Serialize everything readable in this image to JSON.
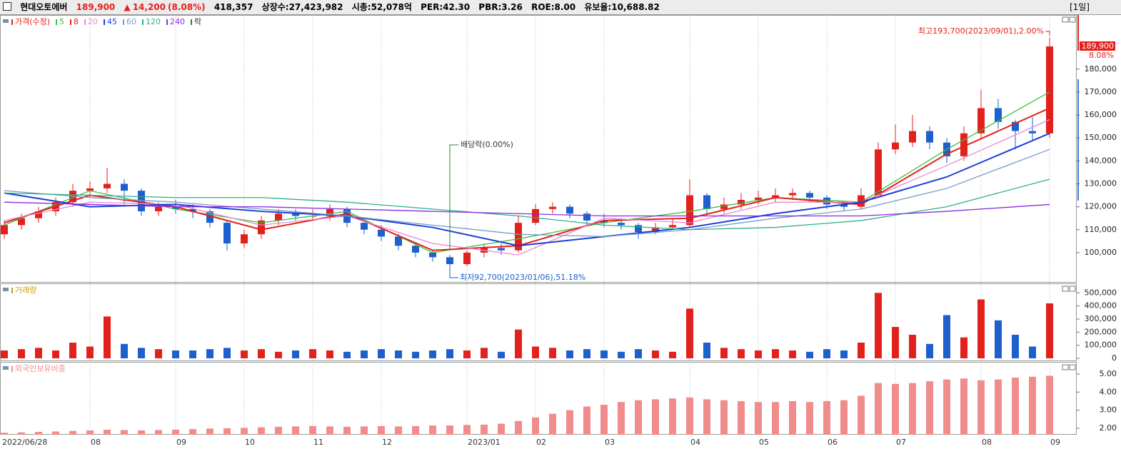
{
  "header": {
    "name": "현대오토에버",
    "price": "189,900",
    "arrow": "▲",
    "change": "14,200",
    "rate": "(8.08%)",
    "volume": "418,357",
    "shares": "상장수:27,423,982",
    "cap": "시총:52,078억",
    "per": "PER:42.30",
    "pbr": "PBR:3.26",
    "roe": "ROE:8.00",
    "reserve": "유보율:10,688.82",
    "period": "[1일]"
  },
  "chart_data": [
    {
      "type": "candlestick",
      "price_label": "가격(수정)",
      "ex_div_legend": "락",
      "up_color": "#e3211c",
      "down_color": "#1d5fcc",
      "open": [
        108000,
        112000,
        115000,
        118000,
        122000,
        127000,
        128000,
        130000,
        127000,
        118000,
        120000,
        119000,
        118000,
        113000,
        104000,
        108000,
        114000,
        117000,
        116000,
        116000,
        119000,
        113000,
        110000,
        107000,
        103000,
        100000,
        98000,
        95000,
        100000,
        102000,
        101000,
        113000,
        119000,
        120000,
        117000,
        114000,
        113000,
        112000,
        109000,
        111000,
        112000,
        125000,
        119000,
        121000,
        123000,
        124000,
        125000,
        126000,
        124000,
        121000,
        120000,
        125000,
        145000,
        148000,
        153000,
        148000,
        142000,
        152000,
        163000,
        157000,
        153000,
        152000
      ],
      "high": [
        114000,
        117000,
        120000,
        124000,
        130000,
        131000,
        137000,
        132000,
        128000,
        122000,
        123000,
        121000,
        119000,
        114000,
        110000,
        116000,
        119000,
        119000,
        119000,
        121000,
        120000,
        114000,
        112000,
        108000,
        104000,
        101000,
        99000,
        101000,
        104000,
        104000,
        116000,
        121000,
        122000,
        121000,
        118000,
        117000,
        115000,
        113000,
        113000,
        115000,
        132000,
        126000,
        124000,
        126000,
        127000,
        128000,
        128000,
        127000,
        125000,
        122000,
        128000,
        148000,
        156000,
        160000,
        155000,
        150000,
        155000,
        171000,
        167000,
        158000,
        159000,
        193700
      ],
      "low": [
        106000,
        110000,
        113000,
        116000,
        120000,
        124000,
        126000,
        121000,
        116000,
        116000,
        117000,
        115000,
        111000,
        101000,
        102000,
        106000,
        112000,
        114000,
        114000,
        114000,
        111000,
        108000,
        105000,
        101000,
        98000,
        96000,
        92700,
        94000,
        98000,
        99000,
        100000,
        112000,
        117000,
        115000,
        112000,
        111000,
        110000,
        106000,
        108000,
        110000,
        111000,
        116000,
        117000,
        119000,
        121000,
        122000,
        123000,
        122000,
        119000,
        118000,
        119000,
        124000,
        143000,
        146000,
        145000,
        139000,
        140000,
        150000,
        154000,
        145000,
        149000,
        150000
      ],
      "close": [
        112000,
        115000,
        118000,
        122000,
        127000,
        128000,
        130000,
        127000,
        118000,
        120000,
        119000,
        118000,
        113000,
        104000,
        108000,
        114000,
        117000,
        116000,
        116000,
        119000,
        113000,
        110000,
        107000,
        103000,
        100000,
        98000,
        95000,
        100000,
        102000,
        101000,
        113000,
        119000,
        120000,
        117000,
        114000,
        113000,
        112000,
        109000,
        111000,
        112000,
        125000,
        119000,
        121000,
        123000,
        124000,
        125000,
        126000,
        124000,
        121000,
        120000,
        125000,
        145000,
        148000,
        153000,
        148000,
        142000,
        152000,
        163000,
        157000,
        153000,
        152000,
        189900
      ],
      "ma_x": [
        0,
        5,
        10,
        15,
        20,
        25,
        30,
        35,
        40,
        45,
        50,
        55,
        61
      ],
      "series": [
        {
          "name": "5",
          "color": "#3cbf3c",
          "values": [
            112000,
            127000,
            119000,
            113000,
            118000,
            100000,
            106000,
            113000,
            118000,
            124000,
            122000,
            145000,
            170000
          ]
        },
        {
          "name": "8",
          "color": "#e3211c",
          "values": [
            113000,
            125000,
            120000,
            110000,
            117000,
            101000,
            103000,
            114000,
            115000,
            124000,
            121000,
            143000,
            163000
          ]
        },
        {
          "name": "20",
          "color": "#e58ad8",
          "values": [
            114000,
            122000,
            121000,
            112000,
            116000,
            104000,
            99000,
            115000,
            113000,
            122000,
            122000,
            138000,
            158000
          ]
        },
        {
          "name": "45",
          "color": "#1a3fd6",
          "values": [
            126000,
            120000,
            121000,
            118000,
            116000,
            111000,
            103000,
            107000,
            111000,
            117000,
            122000,
            133000,
            152000
          ]
        },
        {
          "name": "60",
          "color": "#7a9cc8",
          "values": [
            127000,
            124000,
            122000,
            119000,
            116000,
            112000,
            108000,
            107000,
            110000,
            115000,
            119000,
            128000,
            145000
          ]
        },
        {
          "name": "120",
          "color": "#2fb08a",
          "values": [
            126000,
            125000,
            124000,
            124000,
            122000,
            119000,
            116000,
            112000,
            110000,
            111000,
            114000,
            120000,
            132000
          ]
        },
        {
          "name": "240",
          "color": "#8a2be2",
          "values": [
            122000,
            121000,
            120000,
            120000,
            119000,
            118000,
            117000,
            116000,
            116000,
            116000,
            116000,
            118000,
            121000
          ]
        }
      ],
      "annotations": {
        "high": "최고193,700(2023/09/01),2.00%",
        "low": "최저92,700(2023/01/06),51.18%",
        "dividend": "배당락(0.00%)"
      },
      "last_label": "189,900",
      "last_change": "8.08%",
      "ylim": [
        86900,
        203600
      ],
      "yticks": [
        {
          "value": 100000,
          "label": "100,000"
        },
        {
          "value": 110000,
          "label": "110,000"
        },
        {
          "value": 120000,
          "label": "120,000"
        },
        {
          "value": 130000,
          "label": "130,000"
        },
        {
          "value": 140000,
          "label": "140,000"
        },
        {
          "value": 150000,
          "label": "150,000"
        },
        {
          "value": 160000,
          "label": "160,000"
        },
        {
          "value": 170000,
          "label": "170,000"
        },
        {
          "value": 180000,
          "label": "180,000"
        }
      ]
    },
    {
      "type": "bar",
      "title": "거래량",
      "values": [
        60000,
        70000,
        80000,
        60000,
        120000,
        90000,
        320000,
        110000,
        80000,
        70000,
        60000,
        60000,
        70000,
        80000,
        60000,
        70000,
        50000,
        60000,
        70000,
        60000,
        50000,
        60000,
        70000,
        60000,
        50000,
        60000,
        70000,
        60000,
        80000,
        50000,
        220000,
        90000,
        80000,
        60000,
        70000,
        60000,
        50000,
        70000,
        60000,
        50000,
        380000,
        120000,
        80000,
        70000,
        60000,
        70000,
        60000,
        50000,
        70000,
        60000,
        120000,
        500000,
        240000,
        180000,
        110000,
        330000,
        160000,
        450000,
        290000,
        180000,
        90000,
        420000
      ],
      "ylim": [
        -22000,
        567000
      ],
      "yticks": [
        0,
        {
          "value": 100000,
          "label": "100,000"
        },
        {
          "value": 200000,
          "label": "200,000"
        },
        {
          "value": 300000,
          "label": "300,000"
        },
        {
          "value": 400000,
          "label": "400,000"
        },
        {
          "value": 500000,
          "label": "500,000"
        }
      ]
    },
    {
      "type": "bar",
      "title": "외국인보유비중",
      "color": "#f08c8c",
      "values": [
        1.75,
        1.77,
        1.8,
        1.82,
        1.85,
        1.88,
        1.92,
        1.9,
        1.88,
        1.9,
        1.92,
        1.95,
        1.98,
        2.0,
        2.02,
        2.05,
        2.08,
        2.1,
        2.12,
        2.1,
        2.08,
        2.1,
        2.12,
        2.1,
        2.12,
        2.15,
        2.15,
        2.18,
        2.2,
        2.25,
        2.4,
        2.6,
        2.8,
        3.0,
        3.2,
        3.3,
        3.45,
        3.55,
        3.6,
        3.65,
        3.7,
        3.6,
        3.55,
        3.5,
        3.45,
        3.45,
        3.5,
        3.45,
        3.5,
        3.55,
        3.8,
        4.5,
        4.45,
        4.5,
        4.6,
        4.7,
        4.75,
        4.65,
        4.7,
        4.8,
        4.85,
        4.9
      ],
      "categories": [
        "2022/06/28",
        null,
        null,
        null,
        null,
        "08",
        null,
        null,
        null,
        null,
        "09",
        null,
        null,
        null,
        "10",
        null,
        null,
        null,
        "11",
        null,
        null,
        null,
        "12",
        null,
        null,
        null,
        null,
        "2023/01",
        null,
        null,
        null,
        "02",
        null,
        null,
        null,
        "03",
        null,
        null,
        null,
        null,
        "04",
        null,
        null,
        null,
        "05",
        null,
        null,
        null,
        "06",
        null,
        null,
        null,
        "07",
        null,
        null,
        null,
        null,
        "08",
        null,
        null,
        null,
        "09"
      ],
      "ylim": [
        1.64,
        5.63
      ],
      "yticks": [
        {
          "value": 2,
          "label": "2.00"
        },
        {
          "value": 3,
          "label": "3.00"
        },
        {
          "value": 4,
          "label": "4.00"
        },
        {
          "value": 5,
          "label": "5.00"
        }
      ]
    }
  ]
}
